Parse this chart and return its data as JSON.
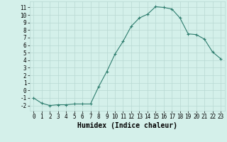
{
  "x": [
    0,
    1,
    2,
    3,
    4,
    5,
    6,
    7,
    8,
    9,
    10,
    11,
    12,
    13,
    14,
    15,
    16,
    17,
    18,
    19,
    20,
    21,
    22,
    23
  ],
  "y": [
    -1,
    -1.7,
    -2,
    -1.9,
    -1.9,
    -1.8,
    -1.8,
    -1.8,
    0.5,
    2.5,
    4.8,
    6.5,
    8.5,
    9.6,
    10.1,
    11.1,
    11.0,
    10.8,
    9.6,
    7.5,
    7.4,
    6.8,
    5.1,
    4.2
  ],
  "line_color": "#2e7d6e",
  "marker": "+",
  "markersize": 3,
  "markeredgewidth": 0.8,
  "linewidth": 0.8,
  "bg_color": "#d4f0ea",
  "grid_color": "#b8d8d2",
  "xlabel": "Humidex (Indice chaleur)",
  "xlabel_fontsize": 7,
  "xlabel_weight": "bold",
  "ytick_labels": [
    "-2",
    "-1",
    "0",
    "1",
    "2",
    "3",
    "4",
    "5",
    "6",
    "7",
    "8",
    "9",
    "10",
    "11"
  ],
  "ytick_vals": [
    -2,
    -1,
    0,
    1,
    2,
    3,
    4,
    5,
    6,
    7,
    8,
    9,
    10,
    11
  ],
  "xtick_labels": [
    "0",
    "1",
    "2",
    "3",
    "4",
    "5",
    "6",
    "7",
    "8",
    "9",
    "10",
    "11",
    "12",
    "13",
    "14",
    "15",
    "16",
    "17",
    "18",
    "19",
    "20",
    "21",
    "22",
    "23"
  ],
  "xlim": [
    -0.5,
    23.5
  ],
  "ylim": [
    -2.7,
    11.8
  ],
  "tick_fontsize": 5.5
}
